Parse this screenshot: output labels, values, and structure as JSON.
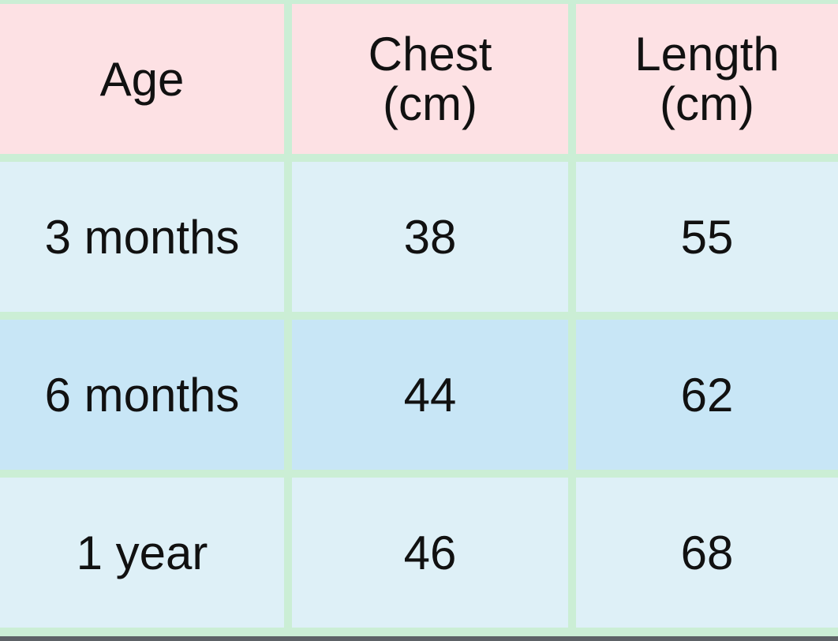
{
  "table": {
    "headers": [
      "Age",
      "Chest\n(cm)",
      "Length\n(cm)"
    ],
    "rows": [
      [
        "3 months",
        "38",
        "55"
      ],
      [
        "6 months",
        "44",
        "62"
      ],
      [
        "1 year",
        "46",
        "68"
      ]
    ]
  },
  "colors": {
    "header_bg": "#fde1e4",
    "row_bg": "#def0f7",
    "row_alt_bg": "#c8e6f6",
    "border": "#cbeed5"
  }
}
